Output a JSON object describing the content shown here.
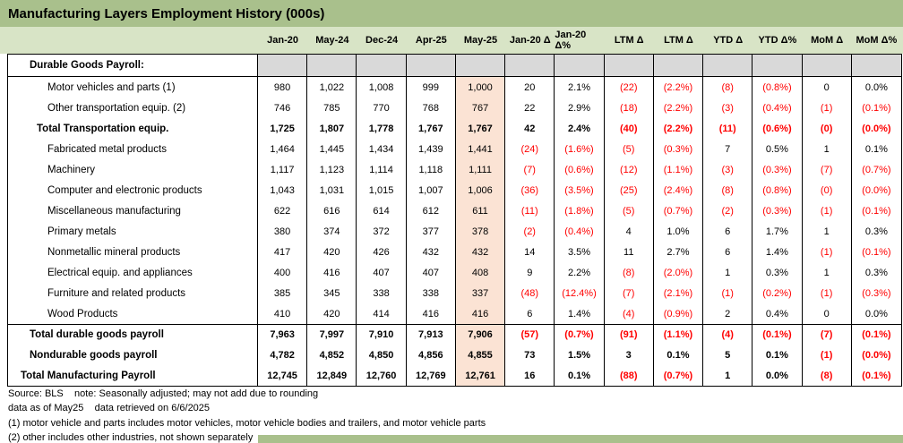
{
  "title": "Manufacturing Layers Employment History (000s)",
  "columns": [
    "Jan-20",
    "May-24",
    "Dec-24",
    "Apr-25",
    "May-25",
    "Jan-20 Δ",
    "Jan-20 Δ%",
    "LTM Δ",
    "LTM Δ",
    "YTD Δ",
    "YTD Δ%",
    "MoM Δ",
    "MoM Δ%"
  ],
  "highlight_column_index": 4,
  "rows": [
    {
      "label": "Durable Goods Payroll:",
      "bold": true,
      "indent": 1,
      "section": true,
      "values": [
        "",
        "",
        "",
        "",
        "",
        "",
        "",
        "",
        "",
        "",
        "",
        "",
        ""
      ]
    },
    {
      "label": "Motor vehicles and parts (1)",
      "bold": false,
      "indent": 3,
      "values": [
        "980",
        "1,022",
        "1,008",
        "999",
        "1,000",
        "20",
        "2.1%",
        "(22)",
        "(2.2%)",
        "(8)",
        "(0.8%)",
        "0",
        "0.0%"
      ]
    },
    {
      "label": "Other transportation equip. (2)",
      "bold": false,
      "indent": 3,
      "values": [
        "746",
        "785",
        "770",
        "768",
        "767",
        "22",
        "2.9%",
        "(18)",
        "(2.2%)",
        "(3)",
        "(0.4%)",
        "(1)",
        "(0.1%)"
      ]
    },
    {
      "label": "Total Transportation equip.",
      "bold": true,
      "indent": 2,
      "values": [
        "1,725",
        "1,807",
        "1,778",
        "1,767",
        "1,767",
        "42",
        "2.4%",
        "(40)",
        "(2.2%)",
        "(11)",
        "(0.6%)",
        "(0)",
        "(0.0%)"
      ]
    },
    {
      "label": "Fabricated metal products",
      "bold": false,
      "indent": 3,
      "values": [
        "1,464",
        "1,445",
        "1,434",
        "1,439",
        "1,441",
        "(24)",
        "(1.6%)",
        "(5)",
        "(0.3%)",
        "7",
        "0.5%",
        "1",
        "0.1%"
      ]
    },
    {
      "label": "Machinery",
      "bold": false,
      "indent": 3,
      "values": [
        "1,117",
        "1,123",
        "1,114",
        "1,118",
        "1,111",
        "(7)",
        "(0.6%)",
        "(12)",
        "(1.1%)",
        "(3)",
        "(0.3%)",
        "(7)",
        "(0.7%)"
      ]
    },
    {
      "label": "Computer and electronic products",
      "bold": false,
      "indent": 3,
      "values": [
        "1,043",
        "1,031",
        "1,015",
        "1,007",
        "1,006",
        "(36)",
        "(3.5%)",
        "(25)",
        "(2.4%)",
        "(8)",
        "(0.8%)",
        "(0)",
        "(0.0%)"
      ]
    },
    {
      "label": "Miscellaneous manufacturing",
      "bold": false,
      "indent": 3,
      "values": [
        "622",
        "616",
        "614",
        "612",
        "611",
        "(11)",
        "(1.8%)",
        "(5)",
        "(0.7%)",
        "(2)",
        "(0.3%)",
        "(1)",
        "(0.1%)"
      ]
    },
    {
      "label": "Primary metals",
      "bold": false,
      "indent": 3,
      "values": [
        "380",
        "374",
        "372",
        "377",
        "378",
        "(2)",
        "(0.4%)",
        "4",
        "1.0%",
        "6",
        "1.7%",
        "1",
        "0.3%"
      ]
    },
    {
      "label": "Nonmetallic mineral products",
      "bold": false,
      "indent": 3,
      "values": [
        "417",
        "420",
        "426",
        "432",
        "432",
        "14",
        "3.5%",
        "11",
        "2.7%",
        "6",
        "1.4%",
        "(1)",
        "(0.1%)"
      ]
    },
    {
      "label": "Electrical equip. and appliances",
      "bold": false,
      "indent": 3,
      "values": [
        "400",
        "416",
        "407",
        "407",
        "408",
        "9",
        "2.2%",
        "(8)",
        "(2.0%)",
        "1",
        "0.3%",
        "1",
        "0.3%"
      ]
    },
    {
      "label": "Furniture and related products",
      "bold": false,
      "indent": 3,
      "values": [
        "385",
        "345",
        "338",
        "338",
        "337",
        "(48)",
        "(12.4%)",
        "(7)",
        "(2.1%)",
        "(1)",
        "(0.2%)",
        "(1)",
        "(0.3%)"
      ]
    },
    {
      "label": "Wood Products",
      "bold": false,
      "indent": 3,
      "values": [
        "410",
        "420",
        "414",
        "416",
        "416",
        "6",
        "1.4%",
        "(4)",
        "(0.9%)",
        "2",
        "0.4%",
        "0",
        "0.0%"
      ]
    },
    {
      "label": "Total durable goods payroll",
      "bold": true,
      "indent": 1,
      "sep_above": true,
      "values": [
        "7,963",
        "7,997",
        "7,910",
        "7,913",
        "7,906",
        "(57)",
        "(0.7%)",
        "(91)",
        "(1.1%)",
        "(4)",
        "(0.1%)",
        "(7)",
        "(0.1%)"
      ]
    },
    {
      "label": "Nondurable goods payroll",
      "bold": true,
      "indent": 1,
      "values": [
        "4,782",
        "4,852",
        "4,850",
        "4,856",
        "4,855",
        "73",
        "1.5%",
        "3",
        "0.1%",
        "5",
        "0.1%",
        "(1)",
        "(0.0%)"
      ]
    },
    {
      "label": "Total Manufacturing Payroll",
      "bold": true,
      "indent": 0,
      "values": [
        "12,745",
        "12,849",
        "12,760",
        "12,769",
        "12,761",
        "16",
        "0.1%",
        "(88)",
        "(0.7%)",
        "1",
        "0.0%",
        "(8)",
        "(0.1%)"
      ]
    }
  ],
  "footnotes": [
    "Source: BLS    note: Seasonally adjusted; may not add due to rounding",
    "data as of May25    data retrieved on 6/6/2025",
    "(1) motor vehicle and parts includes motor vehicles, motor vehicle bodies and trailers, and motor vehicle parts",
    "(2) other includes other industries, not shown separately"
  ],
  "colors": {
    "title_bg": "#a9c08c",
    "header_bg": "#d8e4c6",
    "section_bg": "#d9d9d9",
    "highlight_col_bg": "#fbe3d4",
    "negative": "#ff0000"
  }
}
